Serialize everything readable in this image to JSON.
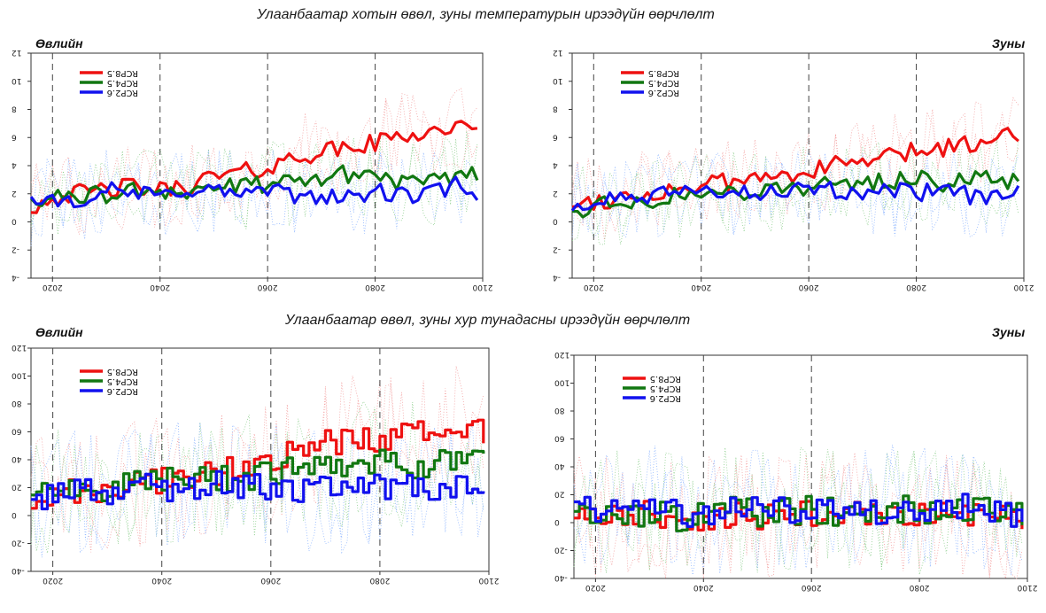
{
  "headings": {
    "temperature": "Улаанбаатар хотын өвөл, зуны температурын ирээдүйн өөрчлөлт",
    "precipitation": "Улаанбаатар өвөл, зуны хур тунадасны ирээдүйн өөрчлөлт"
  },
  "colors": {
    "rcp85": "#ee1111",
    "rcp45": "#117711",
    "rcp26": "#1111ee"
  },
  "chart_data": [
    {
      "type": "line",
      "title": "Өвлийн",
      "xlim": [
        2016,
        2100
      ],
      "ylim": [
        -4,
        12
      ],
      "xticks": [
        "2020",
        "2040",
        "2060",
        "2080",
        "2100"
      ],
      "yticks": [
        "-4",
        "-2",
        "0",
        "2",
        "4",
        "6",
        "8",
        "10",
        "12"
      ],
      "vlines": [
        2020,
        2040,
        2060,
        2080
      ],
      "legend": [
        "RCP8.5",
        "RCP4.5",
        "RCP2.6"
      ],
      "series": [
        {
          "name": "RCP8.5",
          "x": [
            2016,
            2020,
            2025,
            2030,
            2035,
            2040,
            2045,
            2050,
            2055,
            2060,
            2065,
            2070,
            2075,
            2080,
            2085,
            2090,
            2095,
            2099
          ],
          "y": [
            1.0,
            1.8,
            2.0,
            2.3,
            2.5,
            2.2,
            2.6,
            3.2,
            3.5,
            3.8,
            4.6,
            5.0,
            5.2,
            5.6,
            6.2,
            6.4,
            6.8,
            6.2
          ]
        },
        {
          "name": "RCP4.5",
          "x": [
            2016,
            2020,
            2025,
            2030,
            2035,
            2040,
            2045,
            2050,
            2055,
            2060,
            2065,
            2070,
            2075,
            2080,
            2085,
            2090,
            2095,
            2099
          ],
          "y": [
            1.8,
            1.5,
            2.0,
            1.8,
            2.2,
            2.4,
            2.0,
            2.6,
            2.4,
            2.8,
            2.6,
            3.2,
            3.4,
            3.4,
            2.8,
            2.6,
            3.4,
            3.6
          ]
        },
        {
          "name": "RCP2.6",
          "x": [
            2016,
            2020,
            2025,
            2030,
            2035,
            2040,
            2045,
            2050,
            2055,
            2060,
            2065,
            2070,
            2075,
            2080,
            2085,
            2090,
            2095,
            2099
          ],
          "y": [
            1.2,
            1.8,
            1.6,
            2.2,
            2.0,
            1.8,
            2.4,
            2.2,
            2.0,
            2.2,
            1.8,
            2.0,
            1.6,
            2.2,
            1.8,
            2.0,
            2.6,
            1.2
          ]
        }
      ]
    },
    {
      "type": "line",
      "title": "Зуны",
      "xlim": [
        2016,
        2100
      ],
      "ylim": [
        -4,
        12
      ],
      "xticks": [
        "2020",
        "2040",
        "2060",
        "2080",
        "2100"
      ],
      "yticks": [
        "-4",
        "-2",
        "0",
        "2",
        "4",
        "6",
        "8",
        "10",
        "12"
      ],
      "vlines": [
        2020,
        2040,
        2060,
        2080
      ],
      "legend": [
        "RCP8.5",
        "RCP4.5",
        "RCP2.6"
      ],
      "series": [
        {
          "name": "RCP8.5",
          "x": [
            2016,
            2020,
            2025,
            2030,
            2035,
            2040,
            2045,
            2050,
            2055,
            2060,
            2065,
            2070,
            2075,
            2080,
            2085,
            2090,
            2095,
            2099
          ],
          "y": [
            1.4,
            1.5,
            1.7,
            2.0,
            2.3,
            2.6,
            2.8,
            3.0,
            3.4,
            3.6,
            4.0,
            4.3,
            4.6,
            5.0,
            5.3,
            5.6,
            6.0,
            6.4
          ]
        },
        {
          "name": "RCP4.5",
          "x": [
            2016,
            2020,
            2025,
            2030,
            2035,
            2040,
            2045,
            2050,
            2055,
            2060,
            2065,
            2070,
            2075,
            2080,
            2085,
            2090,
            2095,
            2099
          ],
          "y": [
            0.8,
            1.2,
            1.4,
            1.6,
            1.8,
            2.0,
            2.1,
            2.3,
            2.4,
            2.6,
            2.5,
            2.8,
            2.9,
            3.2,
            2.8,
            3.0,
            2.9,
            3.0
          ]
        },
        {
          "name": "RCP2.6",
          "x": [
            2016,
            2020,
            2025,
            2030,
            2035,
            2040,
            2045,
            2050,
            2055,
            2060,
            2065,
            2070,
            2075,
            2080,
            2085,
            2090,
            2095,
            2099
          ],
          "y": [
            1.2,
            1.3,
            1.5,
            1.7,
            1.9,
            2.0,
            2.1,
            2.2,
            2.3,
            2.0,
            2.2,
            2.1,
            2.0,
            2.2,
            2.0,
            1.9,
            1.8,
            2.0
          ]
        }
      ]
    },
    {
      "type": "line",
      "title": "Өвлийн",
      "xlim": [
        2016,
        2100
      ],
      "ylim": [
        -40,
        120
      ],
      "xticks": [
        "2020",
        "2040",
        "2060",
        "2080",
        "2100"
      ],
      "yticks": [
        "-40",
        "-20",
        "0",
        "20",
        "40",
        "60",
        "80",
        "100",
        "120"
      ],
      "vlines": [
        2020,
        2040,
        2060,
        2080
      ],
      "legend": [
        "RCP8.5",
        "RCP4.5",
        "RCP2.6"
      ],
      "series": [
        {
          "name": "RCP8.5",
          "x": [
            2016,
            2020,
            2025,
            2030,
            2035,
            2040,
            2045,
            2050,
            2055,
            2060,
            2065,
            2070,
            2075,
            2080,
            2085,
            2090,
            2095,
            2099
          ],
          "y": [
            10,
            15,
            18,
            20,
            22,
            24,
            28,
            32,
            38,
            40,
            48,
            52,
            55,
            56,
            60,
            58,
            62,
            58
          ]
        },
        {
          "name": "RCP4.5",
          "x": [
            2016,
            2020,
            2025,
            2030,
            2035,
            2040,
            2045,
            2050,
            2055,
            2060,
            2065,
            2070,
            2075,
            2080,
            2085,
            2090,
            2095,
            2099
          ],
          "y": [
            14,
            16,
            18,
            20,
            22,
            24,
            24,
            26,
            28,
            28,
            34,
            36,
            38,
            40,
            36,
            38,
            40,
            38
          ]
        },
        {
          "name": "RCP2.6",
          "x": [
            2016,
            2020,
            2025,
            2030,
            2035,
            2040,
            2045,
            2050,
            2055,
            2060,
            2065,
            2070,
            2075,
            2080,
            2085,
            2090,
            2095,
            2099
          ],
          "y": [
            12,
            14,
            16,
            18,
            20,
            20,
            22,
            22,
            20,
            22,
            18,
            20,
            18,
            20,
            22,
            18,
            24,
            26
          ]
        }
      ]
    },
    {
      "type": "line",
      "title": "Зуны",
      "xlim": [
        2016,
        2100
      ],
      "ylim": [
        -40,
        120
      ],
      "xticks": [
        "2020",
        "2040",
        "2060",
        "2080",
        "2100"
      ],
      "yticks": [
        "-40",
        "-20",
        "0",
        "20",
        "40",
        "60",
        "80",
        "100",
        "120"
      ],
      "vlines": [
        2020,
        2040,
        2060
      ],
      "legend": [
        "RCP8.5",
        "RCP4.5",
        "RCP2.6"
      ],
      "series": [
        {
          "name": "RCP8.5",
          "x": [
            2016,
            2020,
            2025,
            2030,
            2035,
            2040,
            2045,
            2050,
            2055,
            2060,
            2065,
            2070,
            2075,
            2080,
            2085,
            2090,
            2095,
            2099
          ],
          "y": [
            8,
            6,
            4,
            6,
            2,
            4,
            6,
            2,
            4,
            8,
            6,
            4,
            6,
            8,
            6,
            4,
            2,
            -2
          ]
        },
        {
          "name": "RCP4.5",
          "x": [
            2016,
            2020,
            2025,
            2030,
            2035,
            2040,
            2045,
            2050,
            2055,
            2060,
            2065,
            2070,
            2075,
            2080,
            2085,
            2090,
            2095,
            2099
          ],
          "y": [
            6,
            4,
            8,
            6,
            4,
            8,
            10,
            6,
            8,
            10,
            6,
            8,
            10,
            8,
            6,
            10,
            8,
            4
          ]
        },
        {
          "name": "RCP2.6",
          "x": [
            2016,
            2020,
            2025,
            2030,
            2035,
            2040,
            2045,
            2050,
            2055,
            2060,
            2065,
            2070,
            2075,
            2080,
            2085,
            2090,
            2095,
            2099
          ],
          "y": [
            10,
            8,
            12,
            10,
            8,
            6,
            8,
            10,
            8,
            10,
            12,
            8,
            10,
            8,
            10,
            12,
            8,
            6
          ]
        }
      ]
    }
  ]
}
